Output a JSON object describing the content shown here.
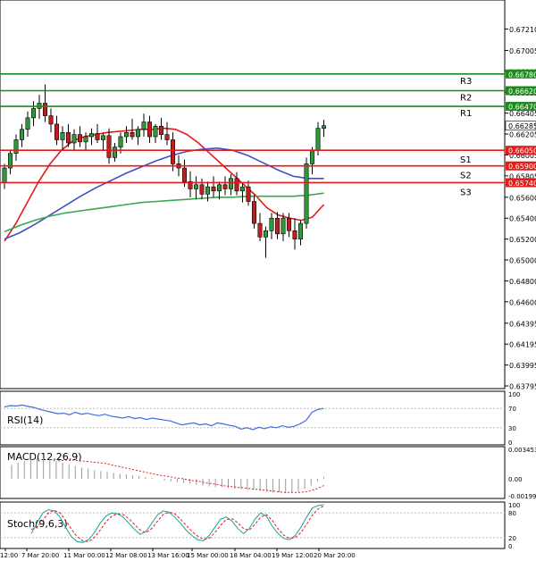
{
  "chart_data": [
    {
      "type": "candlestick",
      "panel": "price",
      "ylim": [
        0.63795,
        0.67385
      ],
      "price_ticks": [
        "0.67210",
        "0.67005",
        "0.66805",
        "0.66605",
        "0.66405",
        "0.66205",
        "0.66005",
        "0.65805",
        "0.65600",
        "0.65400",
        "0.65200",
        "0.65000",
        "0.64800",
        "0.64600",
        "0.64395",
        "0.64195",
        "0.63995",
        "0.63795"
      ],
      "x_labels": [
        "12:00",
        "7 Mar 20:00",
        "11 Mar 00:00",
        "12 Mar 08:00",
        "13 Mar 16:00",
        "15 Mar 00:00",
        "18 Mar 04:00",
        "19 Mar 12:00",
        "20 Mar 20:00"
      ],
      "levels": [
        {
          "name": "R3",
          "value": 0.6678,
          "label": "0.66780",
          "color": "#1e8a1e"
        },
        {
          "name": "R2",
          "value": 0.6662,
          "label": "0.66620",
          "color": "#1e8a1e"
        },
        {
          "name": "R1",
          "value": 0.6647,
          "label": "0.66470",
          "color": "#1e8a1e"
        },
        {
          "name": "S1",
          "value": 0.6605,
          "label": "0.66050",
          "color": "#e31b1b"
        },
        {
          "name": "S2",
          "value": 0.659,
          "label": "0.65900",
          "color": "#e31b1b"
        },
        {
          "name": "S3",
          "value": 0.6574,
          "label": "0.65740",
          "color": "#e31b1b"
        }
      ],
      "current_price": {
        "value": 0.66285,
        "label": "0.66285"
      },
      "candles": [
        [
          0.6574,
          0.6592,
          0.6568,
          0.6588
        ],
        [
          0.6588,
          0.6605,
          0.6582,
          0.6602
        ],
        [
          0.6602,
          0.662,
          0.6595,
          0.6615
        ],
        [
          0.6615,
          0.663,
          0.6608,
          0.6625
        ],
        [
          0.6625,
          0.6642,
          0.6618,
          0.6636
        ],
        [
          0.6636,
          0.6652,
          0.6628,
          0.6645
        ],
        [
          0.6645,
          0.6658,
          0.6635,
          0.665
        ],
        [
          0.665,
          0.6668,
          0.6632,
          0.6638
        ],
        [
          0.6638,
          0.6645,
          0.6622,
          0.663
        ],
        [
          0.663,
          0.6638,
          0.661,
          0.6615
        ],
        [
          0.6615,
          0.6628,
          0.6605,
          0.6622
        ],
        [
          0.6622,
          0.663,
          0.6608,
          0.6612
        ],
        [
          0.6612,
          0.6625,
          0.6605,
          0.662
        ],
        [
          0.662,
          0.6628,
          0.6608,
          0.6613
        ],
        [
          0.6613,
          0.6622,
          0.6605,
          0.6618
        ],
        [
          0.6618,
          0.6626,
          0.661,
          0.6621
        ],
        [
          0.6621,
          0.663,
          0.6612,
          0.6615
        ],
        [
          0.6615,
          0.6622,
          0.6605,
          0.6619
        ],
        [
          0.6619,
          0.6626,
          0.6592,
          0.6598
        ],
        [
          0.6598,
          0.6612,
          0.6594,
          0.6608
        ],
        [
          0.6608,
          0.6622,
          0.6602,
          0.6618
        ],
        [
          0.6618,
          0.6628,
          0.6612,
          0.6622
        ],
        [
          0.6622,
          0.6635,
          0.6615,
          0.6618
        ],
        [
          0.6618,
          0.6628,
          0.661,
          0.6625
        ],
        [
          0.6625,
          0.664,
          0.6618,
          0.6632
        ],
        [
          0.6632,
          0.6638,
          0.6612,
          0.6618
        ],
        [
          0.6618,
          0.663,
          0.6612,
          0.6628
        ],
        [
          0.6628,
          0.6636,
          0.6615,
          0.662
        ],
        [
          0.662,
          0.6632,
          0.661,
          0.6615
        ],
        [
          0.6615,
          0.6622,
          0.6585,
          0.6592
        ],
        [
          0.6592,
          0.66,
          0.658,
          0.6588
        ],
        [
          0.6588,
          0.6596,
          0.657,
          0.6575
        ],
        [
          0.6575,
          0.6585,
          0.656,
          0.6568
        ],
        [
          0.6568,
          0.658,
          0.6558,
          0.6572
        ],
        [
          0.6572,
          0.6578,
          0.6558,
          0.6563
        ],
        [
          0.6563,
          0.6575,
          0.6556,
          0.657
        ],
        [
          0.657,
          0.658,
          0.656,
          0.6566
        ],
        [
          0.6566,
          0.6575,
          0.6558,
          0.6572
        ],
        [
          0.6572,
          0.658,
          0.6562,
          0.6568
        ],
        [
          0.6568,
          0.6582,
          0.6562,
          0.6578
        ],
        [
          0.6578,
          0.6584,
          0.6562,
          0.6566
        ],
        [
          0.6566,
          0.6574,
          0.6555,
          0.657
        ],
        [
          0.657,
          0.6576,
          0.6552,
          0.6556
        ],
        [
          0.6556,
          0.6562,
          0.653,
          0.6535
        ],
        [
          0.6535,
          0.6545,
          0.6518,
          0.6522
        ],
        [
          0.6522,
          0.6532,
          0.6502,
          0.6528
        ],
        [
          0.6528,
          0.6545,
          0.652,
          0.654
        ],
        [
          0.654,
          0.6546,
          0.652,
          0.6525
        ],
        [
          0.6525,
          0.6545,
          0.6518,
          0.654
        ],
        [
          0.654,
          0.6545,
          0.6522,
          0.6528
        ],
        [
          0.6528,
          0.654,
          0.651,
          0.652
        ],
        [
          0.652,
          0.6538,
          0.6514,
          0.6535
        ],
        [
          0.6535,
          0.6598,
          0.653,
          0.6592
        ],
        [
          0.6592,
          0.6608,
          0.6582,
          0.6605
        ],
        [
          0.6605,
          0.6632,
          0.66,
          0.6626
        ],
        [
          0.6626,
          0.6634,
          0.6618,
          0.66285
        ]
      ],
      "series": [
        {
          "name": "",
          "color": "#e31b1b",
          "values": [
            0.6518,
            0.6535,
            0.6555,
            0.6575,
            0.6592,
            0.6605,
            0.6614,
            0.6618,
            0.662,
            0.6622,
            0.6623,
            0.6624,
            0.6625,
            0.6625,
            0.6626,
            0.6625,
            0.662,
            0.6612,
            0.6602,
            0.6592,
            0.6582,
            0.6572,
            0.6562,
            0.655,
            0.6543,
            0.654,
            0.6538,
            0.6541,
            0.6553
          ]
        },
        {
          "name": "",
          "color": "#3f51c4",
          "values": [
            0.652,
            0.6526,
            0.6534,
            0.6543,
            0.6552,
            0.6561,
            0.6569,
            0.6576,
            0.6583,
            0.6589,
            0.6595,
            0.66,
            0.6604,
            0.6606,
            0.6607,
            0.6605,
            0.66,
            0.6593,
            0.6586,
            0.658,
            0.6578,
            0.6578
          ]
        },
        {
          "name": "",
          "color": "#3aa84a",
          "values": [
            0.6527,
            0.6533,
            0.6538,
            0.6542,
            0.6545,
            0.6547,
            0.6549,
            0.6551,
            0.6553,
            0.6555,
            0.6556,
            0.6557,
            0.6558,
            0.6559,
            0.656,
            0.656,
            0.6561,
            0.6561,
            0.6561,
            0.6561,
            0.6562,
            0.6564
          ]
        }
      ]
    },
    {
      "type": "line",
      "panel": "rsi",
      "title": "RSI(14)",
      "ylim": [
        0,
        100
      ],
      "ticks": [
        "100",
        "70",
        "30",
        "0"
      ],
      "levels": [
        70,
        30
      ],
      "series": [
        {
          "name": "",
          "color": "#3f6fd6",
          "values": [
            73,
            76,
            75,
            77,
            74,
            72,
            68,
            65,
            62,
            59,
            60,
            57,
            62,
            58,
            60,
            57,
            55,
            58,
            54,
            52,
            50,
            53,
            49,
            51,
            47,
            50,
            48,
            46,
            44,
            40,
            36,
            38,
            40,
            36,
            38,
            34,
            40,
            38,
            35,
            33,
            27,
            30,
            26,
            31,
            28,
            32,
            30,
            34,
            31,
            33,
            38,
            45,
            62,
            68,
            70
          ]
        }
      ]
    },
    {
      "type": "bar",
      "panel": "macd",
      "title": "MACD(12,26,9)",
      "ylim": [
        -0.001999,
        0.003453
      ],
      "ticks": [
        "0.003453",
        "0.00",
        "-0.001999"
      ],
      "histogram": [
        0.0016,
        0.0019,
        0.0021,
        0.0023,
        0.0024,
        0.0024,
        0.0023,
        0.0021,
        0.0019,
        0.0017,
        0.0015,
        0.0013,
        0.0012,
        0.001,
        0.0009,
        0.0008,
        0.0007,
        0.0006,
        0.0005,
        0.0004,
        0.0003,
        0.0002,
        0.0001,
        0.0,
        -0.0002,
        -0.0003,
        -0.0004,
        -0.0005,
        -0.0006,
        -0.0007,
        -0.0008,
        -0.0009,
        -0.001,
        -0.001,
        -0.0011,
        -0.0012,
        -0.0012,
        -0.0013,
        -0.0013,
        -0.0014,
        -0.0015,
        -0.0016,
        -0.0016,
        -0.0017,
        -0.0016,
        -0.0015,
        -0.0012,
        -0.0008,
        -0.0003,
        0.0002
      ],
      "signal": {
        "name": "",
        "color": "#e31b1b",
        "values": [
          0.0021,
          0.0022,
          0.0022,
          0.0021,
          0.002,
          0.0019,
          0.0018,
          0.0016,
          0.0014,
          0.0012,
          0.001,
          0.0008,
          0.0006,
          0.0004,
          0.0003,
          0.0001,
          0.0,
          -0.0002,
          -0.0003,
          -0.0005,
          -0.0006,
          -0.0008,
          -0.0009,
          -0.001,
          -0.0011,
          -0.0012,
          -0.0013,
          -0.0014,
          -0.0015,
          -0.0016,
          -0.0016,
          -0.0016,
          -0.0015,
          -0.0012,
          -0.0008
        ]
      }
    },
    {
      "type": "line",
      "panel": "stoch",
      "title": "Stoch(9,6,3)",
      "ylim": [
        0,
        100
      ],
      "ticks": [
        "100",
        "80",
        "20",
        "0"
      ],
      "levels": [
        80,
        20
      ],
      "series": [
        {
          "name": "",
          "color": "#1aa0a0",
          "values": [
            30,
            55,
            80,
            88,
            85,
            70,
            45,
            22,
            10,
            8,
            15,
            32,
            55,
            72,
            80,
            78,
            70,
            55,
            40,
            28,
            35,
            55,
            75,
            85,
            82,
            70,
            55,
            38,
            25,
            15,
            12,
            25,
            45,
            65,
            70,
            60,
            42,
            30,
            42,
            65,
            80,
            72,
            48,
            30,
            18,
            15,
            25,
            45,
            70,
            92,
            98,
            100
          ]
        },
        {
          "name": "",
          "color": "#e31b1b",
          "values": [
            40,
            45,
            62,
            80,
            86,
            80,
            62,
            40,
            22,
            12,
            10,
            20,
            38,
            58,
            72,
            78,
            76,
            66,
            52,
            38,
            32,
            42,
            60,
            76,
            82,
            78,
            65,
            50,
            35,
            24,
            16,
            18,
            32,
            50,
            64,
            66,
            56,
            42,
            38,
            52,
            70,
            76,
            62,
            42,
            26,
            18,
            20,
            32,
            52,
            75,
            90,
            97
          ]
        }
      ]
    }
  ]
}
